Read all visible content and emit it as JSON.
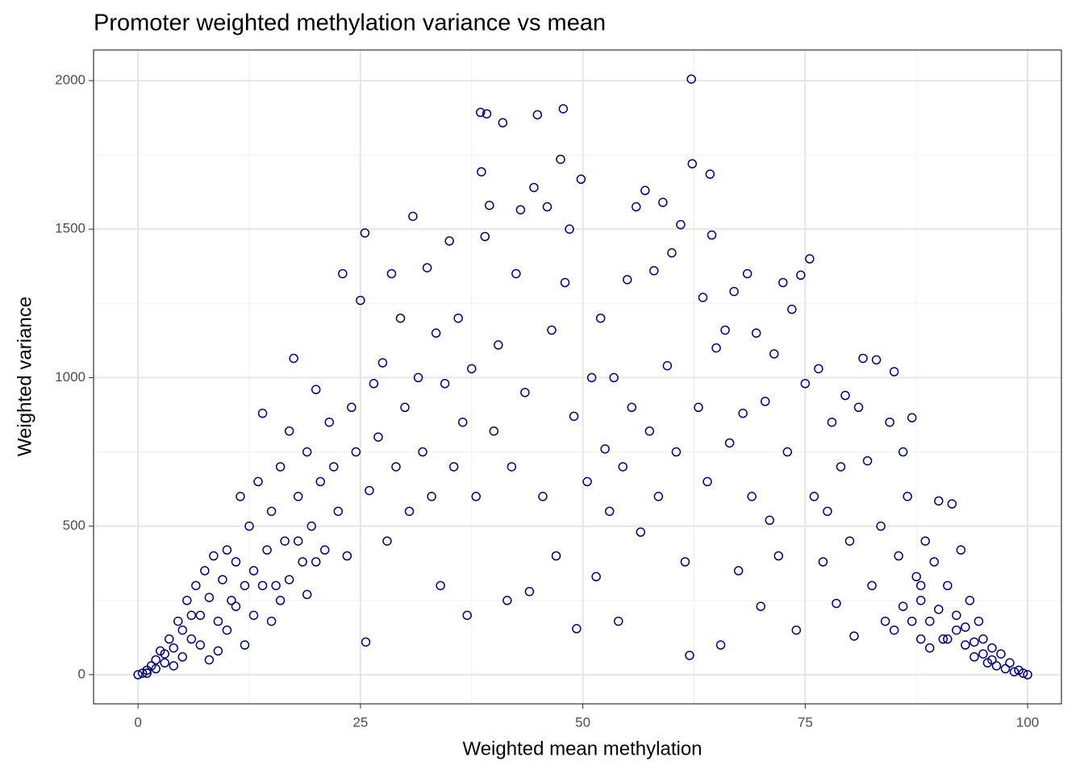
{
  "chart_data": {
    "type": "scatter",
    "title": "Promoter weighted methylation variance vs mean",
    "x_label": "Weighted mean methylation",
    "y_label": "Weighted variance",
    "color": "#000080",
    "grid": true,
    "xlim": [
      -5,
      103.8
    ],
    "ylim": [
      -98,
      2103
    ],
    "xticks": [
      0,
      25,
      50,
      75,
      100
    ],
    "yticks": [
      0,
      500,
      1000,
      1500,
      2000
    ],
    "x_minor_ticks": [
      12.5,
      37.5,
      62.5,
      87.5
    ],
    "y_minor_ticks": [
      250,
      750,
      1250,
      1750
    ],
    "x": [
      0,
      0.5,
      1,
      1.5,
      2,
      2.5,
      3,
      3.5,
      4,
      4.5,
      5,
      5.5,
      6,
      6.5,
      7,
      7.5,
      8,
      8.5,
      9,
      9.5,
      10,
      10.5,
      11,
      11.5,
      12,
      12.5,
      13,
      13.5,
      14,
      14.5,
      15,
      15.5,
      16,
      16.5,
      17,
      17.5,
      18,
      18.5,
      19,
      19.5,
      20,
      20.5,
      21,
      21.5,
      22,
      22.5,
      23,
      23.5,
      24,
      24.5,
      25,
      25.5,
      25.6,
      26,
      26.5,
      27,
      27.5,
      28,
      28.5,
      29,
      29.5,
      30,
      30.5,
      30.9,
      31.5,
      32,
      32.5,
      33,
      33.5,
      34,
      34.5,
      35,
      35.5,
      36,
      36.5,
      37,
      37.5,
      38,
      38.5,
      39.2,
      38.6,
      39,
      39.5,
      40,
      40.5,
      41,
      41.5,
      42,
      42.5,
      43,
      43.5,
      44,
      44.5,
      44.9,
      45.5,
      46,
      46.5,
      47,
      47.5,
      47.8,
      48,
      48.5,
      49,
      49.3,
      49.8,
      50.5,
      51,
      51.5,
      52,
      52.5,
      53,
      53.5,
      54,
      54.5,
      55,
      55.5,
      56,
      56.5,
      57,
      57.5,
      58,
      58.5,
      59,
      59.5,
      60,
      60.5,
      61,
      61.5,
      62,
      62.2,
      62.3,
      63,
      63.5,
      64,
      64.3,
      64.5,
      65,
      65.5,
      66,
      66.5,
      67,
      67.5,
      68,
      68.5,
      69,
      69.5,
      70,
      70.5,
      71,
      71.5,
      72,
      72.5,
      73,
      73.5,
      74,
      74.5,
      75,
      75.5,
      76,
      76.5,
      77,
      77.5,
      78,
      78.5,
      79,
      79.5,
      80,
      80.5,
      81,
      81.5,
      82,
      82.5,
      83,
      83.5,
      84,
      84.5,
      85,
      85.5,
      86,
      86.5,
      87,
      87.5,
      88,
      88.5,
      89,
      89.5,
      90,
      90.5,
      91,
      91.5,
      92,
      92.5,
      93,
      93.5,
      94,
      94.5,
      95,
      95.5,
      96,
      96.5,
      97,
      97.5,
      98,
      98.5,
      99,
      99.5,
      100,
      92,
      90,
      88,
      1,
      2,
      3,
      4,
      5,
      6,
      7,
      8,
      9,
      10,
      11,
      12,
      13,
      14,
      15,
      16,
      17,
      18,
      19,
      20,
      85,
      86,
      87,
      88,
      89,
      91,
      93,
      94,
      95,
      96
    ],
    "values": [
      0,
      5,
      15,
      30,
      50,
      80,
      40,
      120,
      90,
      180,
      150,
      250,
      120,
      300,
      200,
      350,
      260,
      400,
      180,
      320,
      420,
      250,
      380,
      600,
      300,
      500,
      350,
      650,
      880,
      420,
      550,
      300,
      700,
      450,
      820,
      1065,
      600,
      380,
      750,
      500,
      960,
      650,
      420,
      850,
      700,
      550,
      1350,
      400,
      900,
      750,
      1260,
      1487,
      110,
      620,
      980,
      800,
      1050,
      450,
      1350,
      700,
      1200,
      900,
      550,
      1543,
      1000,
      750,
      1370,
      600,
      1150,
      300,
      980,
      1460,
      700,
      1200,
      850,
      200,
      1030,
      600,
      1893,
      1888,
      1693,
      1475,
      1580,
      820,
      1110,
      1858,
      250,
      700,
      1350,
      1565,
      950,
      280,
      1640,
      1885,
      600,
      1575,
      1160,
      400,
      1735,
      1905,
      1320,
      1500,
      870,
      155,
      1668,
      650,
      1000,
      330,
      1200,
      760,
      550,
      1000,
      180,
      700,
      1330,
      900,
      1575,
      480,
      1630,
      820,
      1360,
      600,
      1590,
      1040,
      1420,
      750,
      1515,
      380,
      65,
      2005,
      1720,
      900,
      1270,
      650,
      1685,
      1480,
      1100,
      100,
      1160,
      780,
      1290,
      350,
      880,
      1350,
      600,
      1150,
      230,
      920,
      520,
      1080,
      400,
      1320,
      750,
      1230,
      150,
      1345,
      980,
      1400,
      600,
      1030,
      380,
      550,
      850,
      240,
      700,
      940,
      450,
      130,
      900,
      1065,
      720,
      300,
      1060,
      500,
      180,
      850,
      1020,
      400,
      750,
      600,
      865,
      330,
      250,
      450,
      180,
      380,
      585,
      120,
      300,
      575,
      200,
      420,
      100,
      250,
      60,
      180,
      120,
      40,
      90,
      30,
      70,
      20,
      40,
      10,
      15,
      5,
      0,
      150,
      220,
      300,
      5,
      20,
      70,
      30,
      60,
      200,
      100,
      50,
      80,
      150,
      230,
      100,
      200,
      300,
      180,
      250,
      320,
      450,
      270,
      380,
      150,
      230,
      180,
      120,
      90,
      120,
      160,
      110,
      70,
      50
    ]
  }
}
